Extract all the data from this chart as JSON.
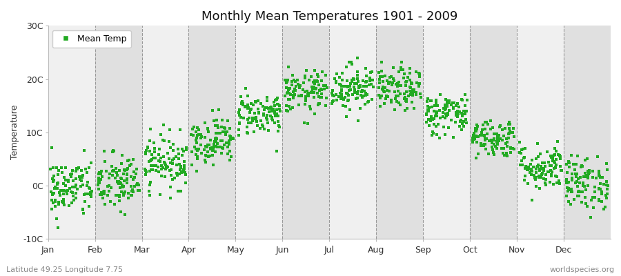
{
  "title": "Monthly Mean Temperatures 1901 - 2009",
  "ylabel": "Temperature",
  "month_labels": [
    "Jan",
    "Feb",
    "Mar",
    "Apr",
    "May",
    "Jun",
    "Jul",
    "Aug",
    "Sep",
    "Oct",
    "Nov",
    "Dec"
  ],
  "ylim": [
    -10,
    30
  ],
  "ytick_labels": [
    "-10C",
    "0C",
    "10C",
    "20C",
    "30C"
  ],
  "ytick_values": [
    -10,
    0,
    10,
    20,
    30
  ],
  "start_year": 1901,
  "end_year": 2009,
  "dot_color": "#22aa22",
  "dot_size": 6,
  "legend_label": "Mean Temp",
  "subtitle_left": "Latitude 49.25 Longitude 7.75",
  "subtitle_right": "worldspecies.org",
  "background_color": "#ffffff",
  "plot_bg_color": "#ffffff",
  "band_color_light": "#f0f0f0",
  "band_color_dark": "#e0e0e0",
  "monthly_means": [
    -0.5,
    0.5,
    4.5,
    8.5,
    13.5,
    17.5,
    18.5,
    18.0,
    13.5,
    9.0,
    3.5,
    0.5
  ],
  "monthly_stds": [
    2.8,
    2.8,
    2.5,
    2.2,
    2.0,
    2.0,
    2.2,
    2.0,
    2.0,
    1.8,
    2.2,
    2.5
  ],
  "dashed_line_color": "#999999",
  "fig_width": 9.0,
  "fig_height": 4.0,
  "dpi": 100
}
